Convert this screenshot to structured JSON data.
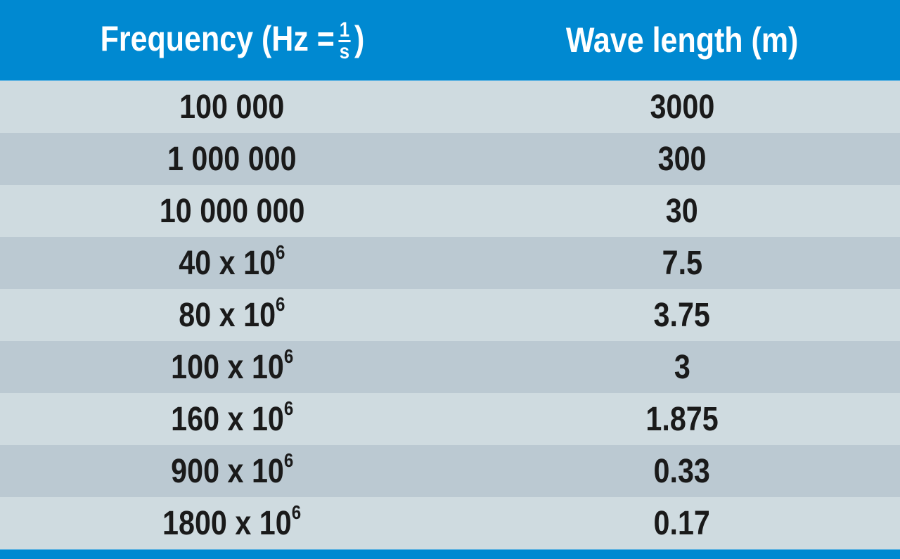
{
  "colors": {
    "header": "#0089d1",
    "row_light": "#cfdbe0",
    "row_dark": "#bbc9d2"
  },
  "header": {
    "frequency_label": "Frequency (Hz =",
    "frac_num": "1",
    "frac_den": "s",
    "frac_close": ")",
    "wavelength_label": "Wave length (m)"
  },
  "rows": [
    {
      "frequency": "100 000",
      "exp": "",
      "wavelength": "3000"
    },
    {
      "frequency": "1 000 000",
      "exp": "",
      "wavelength": "300"
    },
    {
      "frequency": "10 000 000",
      "exp": "",
      "wavelength": "30"
    },
    {
      "frequency": "40 x 10",
      "exp": "6",
      "wavelength": "7.5"
    },
    {
      "frequency": "80 x 10",
      "exp": "6",
      "wavelength": "3.75"
    },
    {
      "frequency": "100 x 10",
      "exp": "6",
      "wavelength": "3"
    },
    {
      "frequency": "160 x 10",
      "exp": "6",
      "wavelength": "1.875"
    },
    {
      "frequency": "900 x 10",
      "exp": "6",
      "wavelength": "0.33"
    },
    {
      "frequency": "1800 x 10",
      "exp": "6",
      "wavelength": "0.17"
    }
  ],
  "chart_data": {
    "type": "table",
    "columns": [
      "Frequency (Hz = 1/s)",
      "Wave length (m)"
    ],
    "rows": [
      [
        "100 000",
        "3000"
      ],
      [
        "1 000 000",
        "300"
      ],
      [
        "10 000 000",
        "30"
      ],
      [
        "40 x 10^6",
        "7.5"
      ],
      [
        "80 x 10^6",
        "3.75"
      ],
      [
        "100 x 10^6",
        "3"
      ],
      [
        "160 x 10^6",
        "1.875"
      ],
      [
        "900 x 10^6",
        "0.33"
      ],
      [
        "1800 x 10^6",
        "0.17"
      ]
    ]
  }
}
